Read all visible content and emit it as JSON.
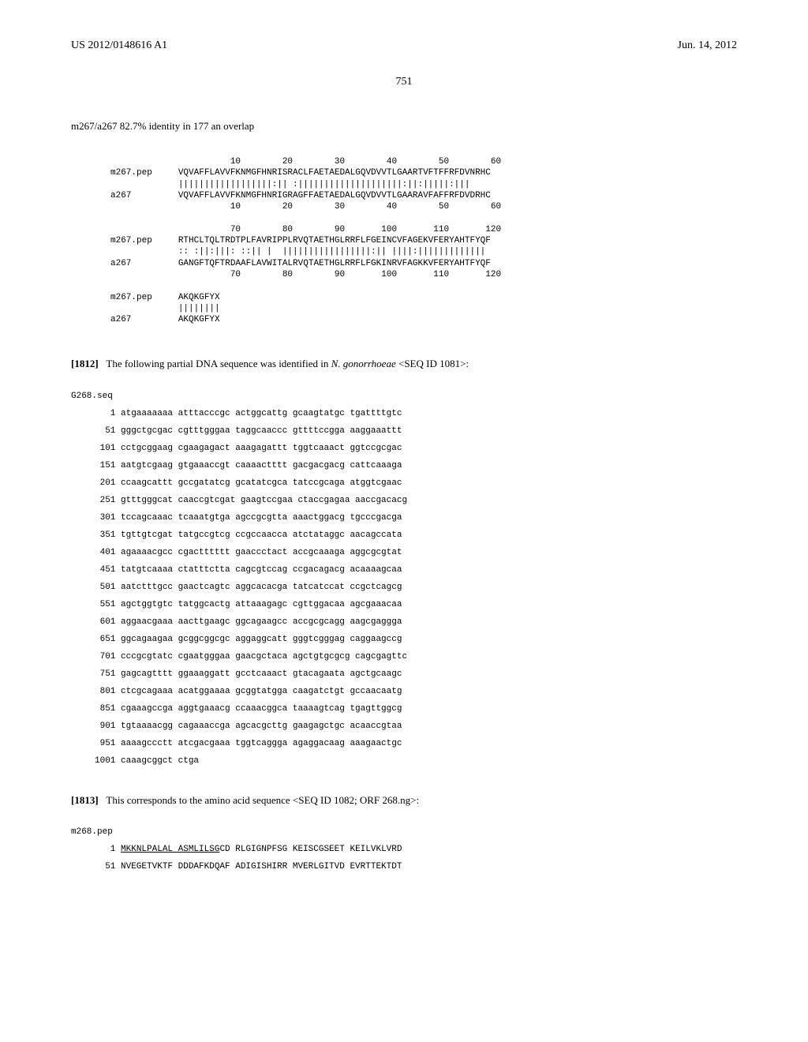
{
  "header": {
    "left": "US 2012/0148616 A1",
    "right": "Jun. 14, 2012"
  },
  "page_number": "751",
  "identity_line": "m267/a267 82.7% identity in 177 an overlap",
  "alignment": {
    "rows": [
      "                       10        20        30        40        50        60",
      "m267.pep     VQVAFFLAVVFKNMGFHNRISRACLFAETAEDALGQVDVVTLGAARTVFTFFRFDVNRHC",
      "             ||||||||||||||||||:|| :||||||||||||||||||||:||:|||||:|||",
      "a267         VQVAFFLAVVFKNMGFHNRIGRAGFFAETAEDALGQVDVVTLGAARAVFAFFRFDVDRHC",
      "                       10        20        30        40        50        60",
      "",
      "                       70        80        90       100       110       120",
      "m267.pep     RTHCLTQLTRDTPLFAVRIPPLRVQTAETHGLRRFLFGEINCVFAGEKVFERYAHTFYQF",
      "             :: :||:|||: ::|| |  |||||||||||||||||:|| ||||:|||||||||||||",
      "a267         GANGFTQFTRDAAFLAVWITALRVQTAETHGLRRFLFGKINRVFAGKKVFERYAHTFYQF",
      "                       70        80        90       100       110       120",
      "",
      "m267.pep     AKQKGFYX",
      "             ||||||||",
      "a267         AKQKGFYX"
    ]
  },
  "para1812": {
    "num": "[1812]",
    "text_before": "The following partial DNA sequence was identified in ",
    "italic": "N. gonorrhoeae",
    "text_after": " <SEQ ID 1081>:"
  },
  "g268_label": "G268.seq",
  "g268_seq": [
    "   1 atgaaaaaaa atttacccgc actggcattg gcaagtatgc tgattttgtc",
    "  51 gggctgcgac cgtttgggaa taggcaaccc gttttccgga aaggaaattt",
    " 101 cctgcggaag cgaagagact aaagagattt tggtcaaact ggtccgcgac",
    " 151 aatgtcgaag gtgaaaccgt caaaactttt gacgacgacg cattcaaaga",
    " 201 ccaagcattt gccgatatcg gcatatcgca tatccgcaga atggtcgaac",
    " 251 gtttgggcat caaccgtcgat gaagtccgaa ctaccgagaa aaccgacacg",
    " 301 tccagcaaac tcaaatgtga agccgcgtta aaactggacg tgcccgacga",
    " 351 tgttgtcgat tatgccgtcg ccgccaacca atctataggc aacagccata",
    " 401 agaaaacgcc cgactttttt gaaccctact accgcaaaga aggcgcgtat",
    " 451 tatgtcaaaa ctatttctta cagcgtccag ccgacagacg acaaaagcaa",
    " 501 aatctttgcc gaactcagtc aggcacacga tatcatccat ccgctcagcg",
    " 551 agctggtgtc tatggcactg attaaagagc cgttggacaa agcgaaacaa",
    " 601 aggaacgaaa aacttgaagc ggcagaagcc accgcgcagg aagcgaggga",
    " 651 ggcagaagaa gcggcggcgc aggaggcatt gggtcgggag caggaagccg",
    " 701 cccgcgtatc cgaatgggaa gaacgctaca agctgtgcgcg cagcgagttc",
    " 751 gagcagtttt ggaaaggatt gcctcaaact gtacagaata agctgcaagc",
    " 801 ctcgcagaaa acatggaaaa gcggtatgga caagatctgt gccaacaatg",
    " 851 cgaaagccga aggtgaaacg ccaaacggca taaaagtcag tgagttggcg",
    " 901 tgtaaaacgg cagaaaccga agcacgcttg gaagagctgc acaaccgtaa",
    " 951 aaaagccctt atcgacgaaa tggtcaggga agaggacaag aaagaactgc",
    "1001 caaagcggct ctga"
  ],
  "para1813": {
    "num": "[1813]",
    "text": "This corresponds to the amino acid sequence <SEQ ID 1082; ORF 268.ng>:"
  },
  "m268_label": "m268.pep",
  "m268_seq_line1_num": "   1 ",
  "m268_seq_line1_underlined": "MKKNLPALAL ASMLILSG",
  "m268_seq_line1_rest": "CD RLGIGNPFSG KEISCGSEET KEILVKLVRD",
  "m268_seq_line2": "  51 NVEGETVKTF DDDAFKDQAF ADIGISHIRR MVERLGITVD EVRTTEKTDT"
}
